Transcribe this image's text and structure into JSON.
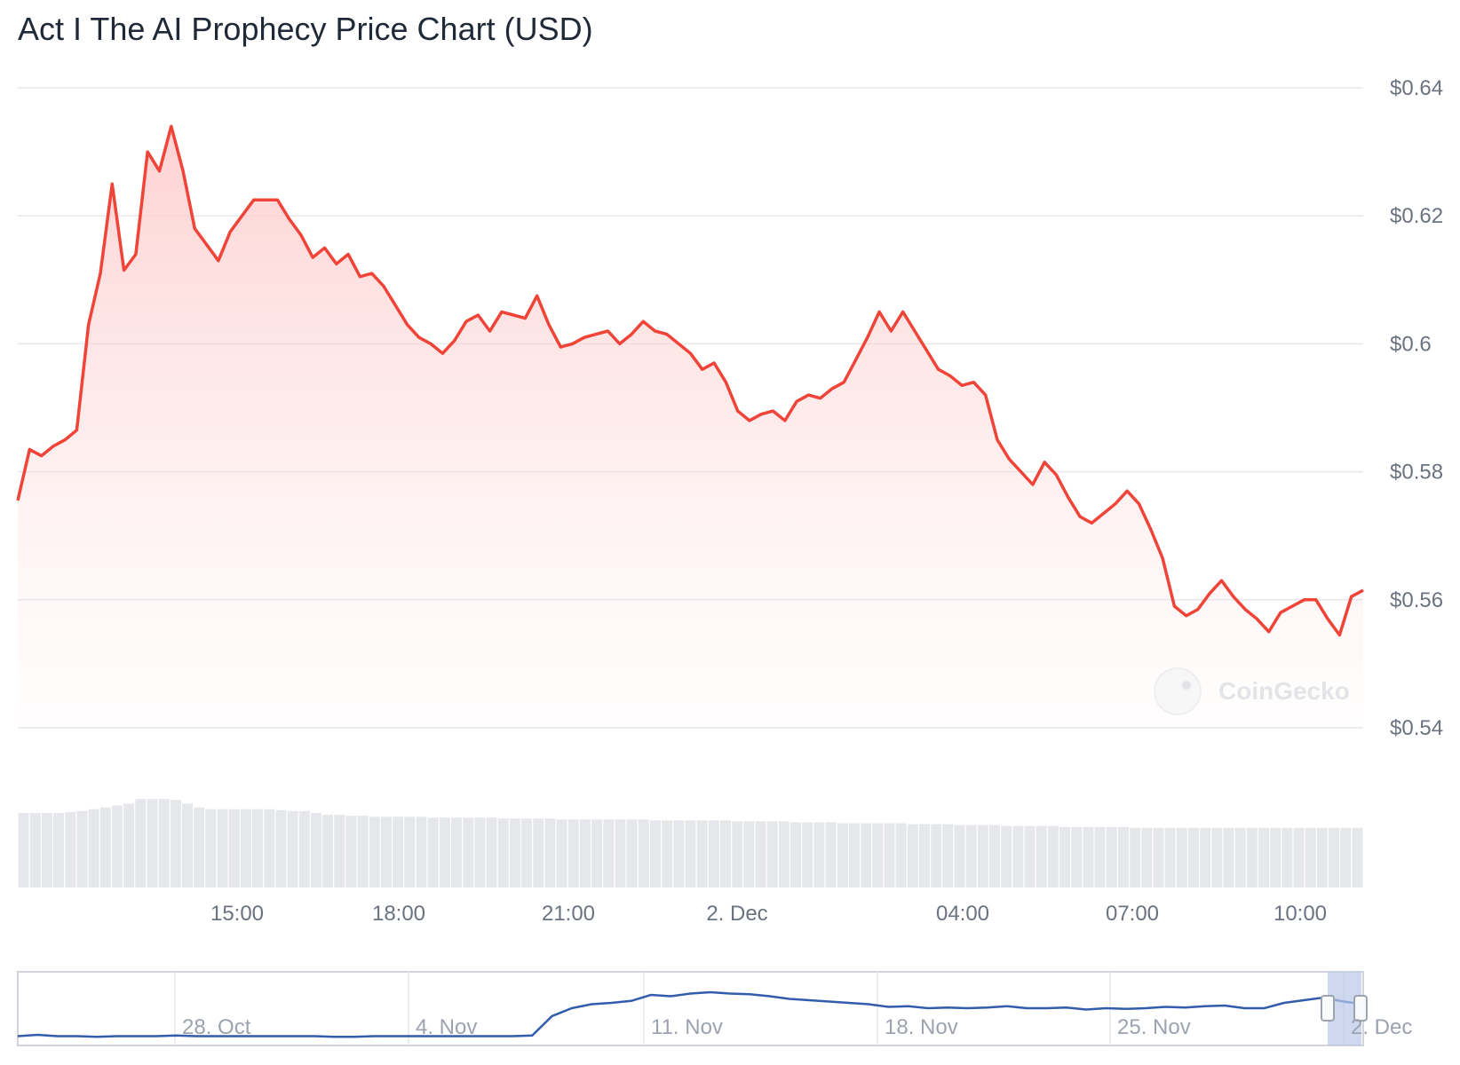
{
  "title": "Act I The AI Prophecy Price Chart (USD)",
  "watermark": "CoinGecko",
  "colors": {
    "price_line": "#f04438",
    "volume_bar": "#e5e7eb",
    "navigator_line": "#335cad",
    "grid": "#e5e7eb"
  },
  "chart_data": {
    "type": "line",
    "title": "Act I The AI Prophecy Price Chart (USD)",
    "ylim": [
      0.54,
      0.64
    ],
    "y_ticks": [
      {
        "value": 0.64,
        "label": "$0.64"
      },
      {
        "value": 0.62,
        "label": "$0.62"
      },
      {
        "value": 0.6,
        "label": "$0.6"
      },
      {
        "value": 0.58,
        "label": "$0.58"
      },
      {
        "value": 0.56,
        "label": "$0.56"
      },
      {
        "value": 0.54,
        "label": "$0.54"
      }
    ],
    "x_range_hours": [
      11.75,
      11.25
    ],
    "x_ticks": [
      "15:00",
      "18:00",
      "21:00",
      "2. Dec",
      "04:00",
      "07:00",
      "10:00"
    ],
    "series": [
      {
        "values": [
          0.5755,
          0.5835,
          0.5825,
          0.584,
          0.585,
          0.5865,
          0.603,
          0.611,
          0.625,
          0.6115,
          0.614,
          0.63,
          0.627,
          0.634,
          0.627,
          0.618,
          0.6155,
          0.613,
          0.6175,
          0.62,
          0.6225,
          0.6225,
          0.6225,
          0.6195,
          0.617,
          0.6135,
          0.615,
          0.6125,
          0.614,
          0.6105,
          0.611,
          0.609,
          0.606,
          0.603,
          0.601,
          0.6,
          0.5985,
          0.6005,
          0.6035,
          0.6045,
          0.602,
          0.605,
          0.6045,
          0.604,
          0.6075,
          0.603,
          0.5995,
          0.6,
          0.601,
          0.6015,
          0.602,
          0.6,
          0.6015,
          0.6035,
          0.602,
          0.6015,
          0.6,
          0.5985,
          0.596,
          0.597,
          0.594,
          0.5895,
          0.588,
          0.589,
          0.5895,
          0.588,
          0.591,
          0.592,
          0.5915,
          0.593,
          0.594,
          0.5975,
          0.601,
          0.605,
          0.602,
          0.605,
          0.602,
          0.599,
          0.596,
          0.595,
          0.5935,
          0.594,
          0.592,
          0.585,
          0.582,
          0.58,
          0.578,
          0.5815,
          0.5795,
          0.576,
          0.573,
          0.572,
          0.5735,
          0.575,
          0.577,
          0.575,
          0.571,
          0.5665,
          0.559,
          0.5575,
          0.5585,
          0.561,
          0.563,
          0.5605,
          0.5585,
          0.557,
          0.555,
          0.558,
          0.559,
          0.56,
          0.56,
          0.557,
          0.5545,
          0.5605,
          0.5615
        ]
      }
    ],
    "navigator": {
      "x_ticks": [
        "28. Oct",
        "4. Nov",
        "11. Nov",
        "18. Nov",
        "25. Nov",
        "2. Dec"
      ],
      "values": [
        0.1,
        0.12,
        0.1,
        0.1,
        0.09,
        0.1,
        0.1,
        0.1,
        0.11,
        0.1,
        0.1,
        0.1,
        0.1,
        0.1,
        0.1,
        0.1,
        0.09,
        0.09,
        0.1,
        0.1,
        0.1,
        0.1,
        0.1,
        0.1,
        0.1,
        0.1,
        0.11,
        0.4,
        0.52,
        0.58,
        0.6,
        0.63,
        0.72,
        0.7,
        0.74,
        0.76,
        0.74,
        0.73,
        0.7,
        0.66,
        0.64,
        0.62,
        0.6,
        0.58,
        0.54,
        0.55,
        0.52,
        0.53,
        0.52,
        0.53,
        0.55,
        0.52,
        0.52,
        0.53,
        0.5,
        0.52,
        0.51,
        0.52,
        0.54,
        0.53,
        0.55,
        0.56,
        0.52,
        0.52,
        0.6,
        0.64,
        0.68,
        0.62,
        0.58
      ]
    }
  },
  "volume_data": {
    "values": [
      0.8,
      0.8,
      0.8,
      0.8,
      0.81,
      0.82,
      0.84,
      0.86,
      0.88,
      0.9,
      0.95,
      0.95,
      0.95,
      0.94,
      0.9,
      0.86,
      0.84,
      0.84,
      0.84,
      0.84,
      0.84,
      0.84,
      0.83,
      0.82,
      0.82,
      0.8,
      0.78,
      0.78,
      0.77,
      0.77,
      0.76,
      0.76,
      0.76,
      0.76,
      0.76,
      0.75,
      0.75,
      0.75,
      0.75,
      0.75,
      0.75,
      0.74,
      0.74,
      0.74,
      0.74,
      0.74,
      0.73,
      0.73,
      0.73,
      0.73,
      0.73,
      0.73,
      0.73,
      0.73,
      0.72,
      0.72,
      0.72,
      0.72,
      0.72,
      0.72,
      0.72,
      0.71,
      0.71,
      0.71,
      0.71,
      0.71,
      0.7,
      0.7,
      0.7,
      0.7,
      0.69,
      0.69,
      0.69,
      0.69,
      0.69,
      0.69,
      0.68,
      0.68,
      0.68,
      0.68,
      0.67,
      0.67,
      0.67,
      0.67,
      0.66,
      0.66,
      0.66,
      0.66,
      0.66,
      0.65,
      0.65,
      0.65,
      0.65,
      0.65,
      0.65,
      0.64,
      0.64,
      0.64,
      0.64,
      0.64,
      0.64,
      0.64,
      0.64,
      0.64,
      0.64,
      0.64,
      0.64,
      0.64,
      0.64,
      0.64,
      0.64,
      0.64,
      0.64,
      0.64,
      0.64
    ]
  }
}
